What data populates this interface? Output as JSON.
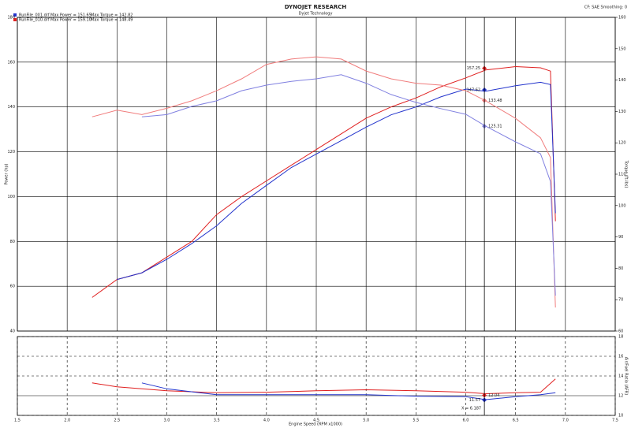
{
  "chart_data": [
    {
      "type": "line",
      "title": "DYNOJET RESEARCH",
      "subtitle": "Dyjet Technology",
      "corner_note": "CF: SAE Smoothing: 0",
      "y_label": "Power (hp)",
      "y2_label": "Torque (ft-lbs)",
      "legend": [
        {
          "name": "RunFile_001.drf",
          "color": "#2233cc",
          "max_power": "Max Power = 151.65",
          "max_torque": "Max Torque = 142.82"
        },
        {
          "name": "RunFile_010.drf",
          "color": "#e02020",
          "max_power": "Max Power = 159.10",
          "max_torque": "Max Torque = 148.49"
        }
      ],
      "x": [
        2.25,
        2.5,
        2.75,
        3.0,
        3.25,
        3.5,
        3.75,
        4.0,
        4.25,
        4.5,
        4.75,
        5.0,
        5.25,
        5.5,
        5.75,
        6.0,
        6.2,
        6.5,
        6.75,
        6.85,
        6.9
      ],
      "series": [
        {
          "color": "#e02020",
          "axis": "y",
          "values": [
            55,
            63,
            66,
            73,
            80,
            92,
            100,
            107,
            114,
            121,
            128,
            135,
            140,
            144,
            149,
            153,
            156.5,
            158,
            157.5,
            156,
            89
          ]
        },
        {
          "color": "#2233cc",
          "axis": "y",
          "values": [
            null,
            63,
            66,
            72,
            79,
            87,
            97,
            105,
            113,
            119,
            125,
            131,
            136.5,
            140,
            144.5,
            148,
            147,
            149.5,
            151,
            150,
            92.6
          ]
        },
        {
          "color": "#f07c7c",
          "axis": "y2",
          "values": [
            128.3,
            130.4,
            129,
            131,
            133.4,
            136.6,
            140.4,
            145,
            146.7,
            147.4,
            146.7,
            142.9,
            140.4,
            139,
            138.4,
            136.6,
            133.4,
            127.8,
            121.6,
            115.3,
            67.5
          ]
        },
        {
          "color": "#8080e0",
          "axis": "y2",
          "values": [
            null,
            null,
            128.3,
            129,
            131.6,
            133.4,
            136.6,
            138.4,
            139.6,
            140.4,
            141.7,
            139,
            135.4,
            132.9,
            130.9,
            129.1,
            125.3,
            120.3,
            116.5,
            107.7,
            71.3
          ]
        }
      ],
      "cursor_values": [
        {
          "value": 157.25,
          "color": "#e02020",
          "axis": "y"
        },
        {
          "value": 147.62,
          "color": "#2233cc",
          "axis": "y"
        },
        {
          "value": 133.48,
          "color": "#f07c7c",
          "axis": "y2"
        },
        {
          "value": 125.31,
          "color": "#8080e0",
          "axis": "y2"
        }
      ],
      "xlim": [
        1.5,
        7.5
      ],
      "xticks": [
        1.5,
        2,
        2.5,
        3,
        3.5,
        4,
        4.5,
        5,
        5.5,
        6,
        6.5,
        7,
        7.5
      ],
      "ylim": [
        40,
        180
      ],
      "yticks": [
        40,
        60,
        80,
        100,
        120,
        140,
        160,
        180
      ],
      "y2lim": [
        60,
        160
      ],
      "y2ticks": [
        60,
        70,
        80,
        90,
        100,
        110,
        120,
        130,
        140,
        150,
        160
      ],
      "grid": true
    },
    {
      "type": "line",
      "x_label": "Engine Speed (RPM x1000)",
      "y2_label": "Air/Fuel Ratio (AFR)",
      "x": [
        2.25,
        2.5,
        2.75,
        3.0,
        3.5,
        4.0,
        4.5,
        5.0,
        5.5,
        6.0,
        6.2,
        6.5,
        6.75,
        6.9
      ],
      "series": [
        {
          "color": "#e02020",
          "axis": "y2",
          "values": [
            13.3,
            12.9,
            12.7,
            12.5,
            12.3,
            12.35,
            12.5,
            12.6,
            12.5,
            12.35,
            12.2,
            12.3,
            12.35,
            13.7
          ]
        },
        {
          "color": "#2233cc",
          "axis": "y2",
          "values": [
            null,
            null,
            13.3,
            12.7,
            12.1,
            12.1,
            12.1,
            12.1,
            11.95,
            11.9,
            11.6,
            11.9,
            12.1,
            12.3
          ]
        }
      ],
      "cursor_values": [
        {
          "value": 12.04,
          "color": "#e02020",
          "axis": "y2"
        },
        {
          "value": 11.57,
          "color": "#2233cc",
          "axis": "y2"
        }
      ],
      "cursor_x": 6.187,
      "cursor_label": "X = 6.187",
      "xlim": [
        1.5,
        7.5
      ],
      "xticks": [
        1.5,
        {
          "value": 2,
          "label": "2.0"
        },
        2.5,
        {
          "value": 3,
          "label": "3.0"
        },
        3.5,
        {
          "value": 4,
          "label": "4.0"
        },
        4.5,
        {
          "value": 5,
          "label": "5.0"
        },
        5.5,
        {
          "value": 6,
          "label": "6.0"
        },
        6.5,
        {
          "value": 7,
          "label": "7.0"
        },
        7.5
      ],
      "y2lim": [
        10,
        18
      ],
      "y2ticks": [
        10,
        12,
        14,
        16,
        18
      ],
      "grid": true
    }
  ]
}
